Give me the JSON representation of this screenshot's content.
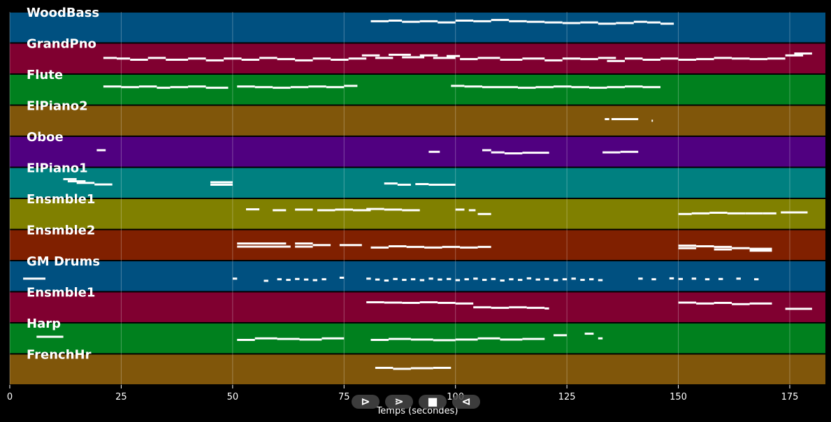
{
  "chart_data": {
    "type": "piano-roll",
    "xlabel": "Temps (secondes)",
    "xlim": [
      0,
      183
    ],
    "xticks": [
      0,
      25,
      50,
      75,
      100,
      125,
      150,
      175
    ],
    "grid": true,
    "tracks": [
      {
        "name": "WoodBass",
        "color": "#005080",
        "notes": [
          [
            81,
            85,
            0.7
          ],
          [
            85,
            88,
            0.72
          ],
          [
            88,
            92,
            0.68
          ],
          [
            92,
            96,
            0.7
          ],
          [
            96,
            100,
            0.66
          ],
          [
            100,
            104,
            0.72
          ],
          [
            104,
            108,
            0.7
          ],
          [
            108,
            112,
            0.74
          ],
          [
            112,
            116,
            0.7
          ],
          [
            116,
            120,
            0.68
          ],
          [
            120,
            124,
            0.66
          ],
          [
            124,
            128,
            0.64
          ],
          [
            128,
            132,
            0.66
          ],
          [
            132,
            136,
            0.62
          ],
          [
            136,
            140,
            0.64
          ],
          [
            140,
            143,
            0.68
          ],
          [
            143,
            146,
            0.66
          ],
          [
            146,
            149,
            0.62
          ]
        ]
      },
      {
        "name": "GrandPno",
        "color": "#800030",
        "notes": [
          [
            21,
            24,
            0.52
          ],
          [
            24,
            27,
            0.5
          ],
          [
            27,
            31,
            0.46
          ],
          [
            31,
            35,
            0.52
          ],
          [
            35,
            40,
            0.46
          ],
          [
            40,
            44,
            0.5
          ],
          [
            44,
            48,
            0.44
          ],
          [
            48,
            52,
            0.5
          ],
          [
            52,
            56,
            0.46
          ],
          [
            56,
            60,
            0.52
          ],
          [
            60,
            64,
            0.48
          ],
          [
            64,
            68,
            0.44
          ],
          [
            68,
            72,
            0.5
          ],
          [
            72,
            76,
            0.46
          ],
          [
            76,
            80,
            0.5
          ],
          [
            79,
            83,
            0.6
          ],
          [
            82,
            86,
            0.52
          ],
          [
            85,
            90,
            0.62
          ],
          [
            88,
            93,
            0.54
          ],
          [
            92,
            96,
            0.6
          ],
          [
            95,
            100,
            0.52
          ],
          [
            98,
            101,
            0.58
          ],
          [
            101,
            105,
            0.48
          ],
          [
            105,
            110,
            0.52
          ],
          [
            110,
            115,
            0.46
          ],
          [
            115,
            120,
            0.5
          ],
          [
            120,
            124,
            0.44
          ],
          [
            124,
            128,
            0.5
          ],
          [
            128,
            132,
            0.48
          ],
          [
            132,
            136,
            0.52
          ],
          [
            134,
            138,
            0.42
          ],
          [
            138,
            142,
            0.5
          ],
          [
            142,
            146,
            0.46
          ],
          [
            146,
            150,
            0.5
          ],
          [
            150,
            154,
            0.46
          ],
          [
            154,
            158,
            0.48
          ],
          [
            158,
            162,
            0.52
          ],
          [
            162,
            166,
            0.5
          ],
          [
            166,
            170,
            0.48
          ],
          [
            170,
            174,
            0.5
          ],
          [
            174,
            178,
            0.6
          ],
          [
            176,
            180,
            0.66
          ]
        ]
      },
      {
        "name": "Flute",
        "color": "#00801e",
        "notes": [
          [
            21,
            25,
            0.6
          ],
          [
            25,
            29,
            0.58
          ],
          [
            29,
            33,
            0.6
          ],
          [
            33,
            36,
            0.56
          ],
          [
            36,
            40,
            0.58
          ],
          [
            40,
            44,
            0.6
          ],
          [
            44,
            49,
            0.56
          ],
          [
            51,
            55,
            0.6
          ],
          [
            55,
            59,
            0.58
          ],
          [
            59,
            63,
            0.56
          ],
          [
            63,
            67,
            0.58
          ],
          [
            67,
            71,
            0.6
          ],
          [
            71,
            75,
            0.58
          ],
          [
            75,
            78,
            0.62
          ],
          [
            99,
            102,
            0.62
          ],
          [
            102,
            106,
            0.6
          ],
          [
            106,
            110,
            0.58
          ],
          [
            110,
            114,
            0.58
          ],
          [
            114,
            118,
            0.56
          ],
          [
            118,
            122,
            0.58
          ],
          [
            122,
            126,
            0.6
          ],
          [
            126,
            130,
            0.58
          ],
          [
            130,
            134,
            0.56
          ],
          [
            134,
            138,
            0.58
          ],
          [
            138,
            142,
            0.6
          ],
          [
            142,
            146,
            0.58
          ]
        ]
      },
      {
        "name": "ElPiano2",
        "color": "#80560a",
        "notes": [
          [
            133.5,
            134.5,
            0.55
          ],
          [
            135,
            141,
            0.55
          ],
          [
            144,
            144.3,
            0.5
          ]
        ]
      },
      {
        "name": "Oboe",
        "color": "#500080",
        "notes": [
          [
            19.5,
            21.5,
            0.55
          ],
          [
            94,
            96.5,
            0.5
          ],
          [
            106,
            108,
            0.55
          ],
          [
            108,
            111,
            0.48
          ],
          [
            111,
            115,
            0.45
          ],
          [
            115,
            121,
            0.47
          ],
          [
            133,
            137,
            0.48
          ],
          [
            137,
            141,
            0.5
          ]
        ]
      },
      {
        "name": "ElPiano1",
        "color": "#008080",
        "notes": [
          [
            12,
            15,
            0.62
          ],
          [
            13,
            17,
            0.55
          ],
          [
            15,
            19,
            0.5
          ],
          [
            19,
            23,
            0.45
          ],
          [
            45,
            50,
            0.52
          ],
          [
            45,
            50,
            0.44
          ],
          [
            84,
            87,
            0.48
          ],
          [
            87,
            90,
            0.44
          ],
          [
            91,
            94,
            0.46
          ],
          [
            94,
            100,
            0.44
          ]
        ]
      },
      {
        "name": "Ensmble1",
        "color": "#808000",
        "notes": [
          [
            53,
            56,
            0.65
          ],
          [
            59,
            62,
            0.62
          ],
          [
            64,
            68,
            0.64
          ],
          [
            69,
            73,
            0.62
          ],
          [
            73,
            77,
            0.64
          ],
          [
            77,
            81,
            0.62
          ],
          [
            80,
            84,
            0.66
          ],
          [
            84,
            88,
            0.64
          ],
          [
            88,
            92,
            0.62
          ],
          [
            100,
            102,
            0.64
          ],
          [
            103,
            104.5,
            0.62
          ],
          [
            105,
            108,
            0.5
          ],
          [
            150,
            153,
            0.5
          ],
          [
            153,
            157,
            0.52
          ],
          [
            157,
            161,
            0.54
          ],
          [
            161,
            165,
            0.52
          ],
          [
            165,
            169,
            0.52
          ],
          [
            169,
            172,
            0.52
          ],
          [
            173,
            179,
            0.55
          ]
        ]
      },
      {
        "name": "Ensmble2",
        "color": "#802000",
        "notes": [
          [
            51,
            57,
            0.55
          ],
          [
            51,
            57,
            0.45
          ],
          [
            57,
            62,
            0.55
          ],
          [
            57,
            63,
            0.45
          ],
          [
            64,
            68,
            0.55
          ],
          [
            64,
            68,
            0.45
          ],
          [
            68,
            72,
            0.5
          ],
          [
            74,
            79,
            0.5
          ],
          [
            81,
            85,
            0.42
          ],
          [
            85,
            89,
            0.46
          ],
          [
            89,
            93,
            0.44
          ],
          [
            93,
            97,
            0.42
          ],
          [
            97,
            101,
            0.44
          ],
          [
            101,
            105,
            0.42
          ],
          [
            105,
            108,
            0.44
          ],
          [
            150,
            154,
            0.48
          ],
          [
            150,
            154,
            0.4
          ],
          [
            154,
            158,
            0.46
          ],
          [
            158,
            162,
            0.44
          ],
          [
            158,
            162,
            0.36
          ],
          [
            162,
            166,
            0.4
          ],
          [
            166,
            171,
            0.38
          ],
          [
            166,
            171,
            0.32
          ]
        ]
      },
      {
        "name": "GM Drums",
        "color": "#005080",
        "notes": [
          [
            3,
            8,
            0.42
          ],
          [
            50,
            51,
            0.42
          ],
          [
            57,
            58,
            0.35
          ],
          [
            60,
            61,
            0.4
          ],
          [
            62,
            63,
            0.38
          ],
          [
            64,
            65,
            0.41
          ],
          [
            66,
            67,
            0.39
          ],
          [
            68,
            69,
            0.37
          ],
          [
            70,
            71,
            0.4
          ],
          [
            74,
            75,
            0.45
          ],
          [
            80,
            81,
            0.42
          ],
          [
            82,
            83,
            0.39
          ],
          [
            84,
            85,
            0.36
          ],
          [
            86,
            87,
            0.41
          ],
          [
            88,
            89,
            0.38
          ],
          [
            90,
            91,
            0.4
          ],
          [
            92,
            93,
            0.37
          ],
          [
            94,
            95,
            0.42
          ],
          [
            96,
            97,
            0.39
          ],
          [
            98,
            99,
            0.41
          ],
          [
            100,
            101,
            0.37
          ],
          [
            102,
            103,
            0.4
          ],
          [
            104,
            105,
            0.42
          ],
          [
            106,
            107,
            0.38
          ],
          [
            108,
            109,
            0.41
          ],
          [
            110,
            111,
            0.36
          ],
          [
            112,
            113,
            0.4
          ],
          [
            114,
            115,
            0.38
          ],
          [
            116,
            117,
            0.43
          ],
          [
            118,
            119,
            0.39
          ],
          [
            120,
            121,
            0.41
          ],
          [
            122,
            123,
            0.37
          ],
          [
            124,
            125,
            0.4
          ],
          [
            126,
            127,
            0.42
          ],
          [
            128,
            129,
            0.38
          ],
          [
            130,
            131,
            0.4
          ],
          [
            132,
            133,
            0.37
          ],
          [
            141,
            142,
            0.42
          ],
          [
            144,
            145,
            0.4
          ],
          [
            148,
            149,
            0.43
          ],
          [
            150,
            151,
            0.41
          ],
          [
            153,
            154,
            0.42
          ],
          [
            156,
            157,
            0.4
          ],
          [
            159,
            160,
            0.41
          ],
          [
            163,
            164,
            0.42
          ],
          [
            167,
            168,
            0.4
          ]
        ]
      },
      {
        "name": "Ensmble1",
        "color": "#800030",
        "notes": [
          [
            80,
            84,
            0.66
          ],
          [
            84,
            88,
            0.65
          ],
          [
            88,
            92,
            0.64
          ],
          [
            92,
            96,
            0.66
          ],
          [
            96,
            100,
            0.64
          ],
          [
            100,
            104,
            0.62
          ],
          [
            104,
            108,
            0.5
          ],
          [
            108,
            112,
            0.48
          ],
          [
            112,
            116,
            0.5
          ],
          [
            116,
            120,
            0.48
          ],
          [
            120,
            121,
            0.46
          ],
          [
            150,
            154,
            0.65
          ],
          [
            154,
            158,
            0.62
          ],
          [
            158,
            162,
            0.64
          ],
          [
            162,
            166,
            0.6
          ],
          [
            166,
            171,
            0.62
          ],
          [
            174,
            180,
            0.45
          ]
        ]
      },
      {
        "name": "Harp",
        "color": "#00801e",
        "notes": [
          [
            6,
            12,
            0.55
          ],
          [
            51,
            55,
            0.45
          ],
          [
            55,
            60,
            0.5
          ],
          [
            60,
            65,
            0.48
          ],
          [
            65,
            70,
            0.46
          ],
          [
            70,
            75,
            0.5
          ],
          [
            81,
            85,
            0.45
          ],
          [
            85,
            90,
            0.48
          ],
          [
            90,
            95,
            0.46
          ],
          [
            95,
            100,
            0.44
          ],
          [
            100,
            105,
            0.46
          ],
          [
            105,
            110,
            0.5
          ],
          [
            110,
            115,
            0.46
          ],
          [
            115,
            120,
            0.48
          ],
          [
            122,
            125,
            0.6
          ],
          [
            129,
            131,
            0.65
          ],
          [
            132,
            133,
            0.5
          ]
        ]
      },
      {
        "name": "FrenchHr",
        "color": "#80560a",
        "notes": [
          [
            82,
            86,
            0.55
          ],
          [
            86,
            90,
            0.52
          ],
          [
            90,
            95,
            0.54
          ],
          [
            95,
            99,
            0.55
          ]
        ]
      }
    ]
  },
  "controls": {
    "play": "⊳",
    "next": "⋗",
    "stop": "■",
    "back": "⊲"
  }
}
